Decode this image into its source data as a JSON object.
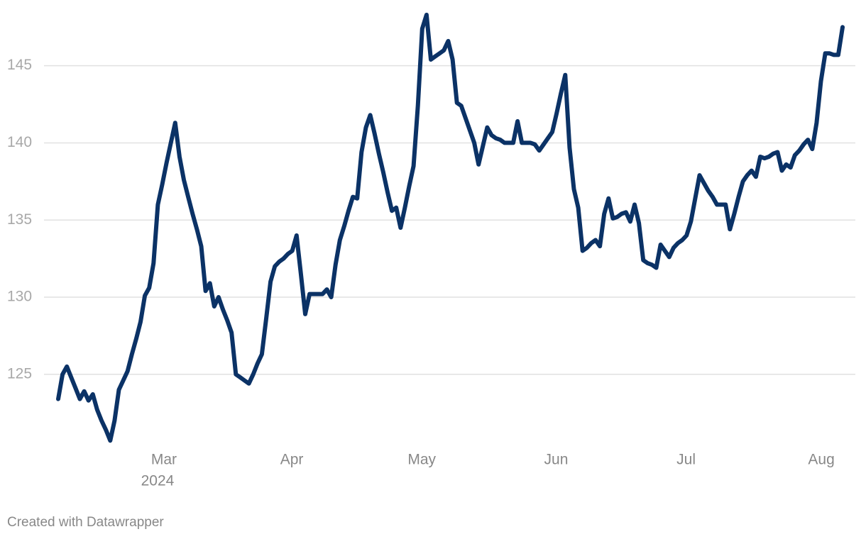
{
  "chart_data": {
    "type": "line",
    "series": [
      {
        "color": "#0b3266",
        "values": [
          123.4,
          125.0,
          125.5,
          124.8,
          124.1,
          123.4,
          123.9,
          123.3,
          123.7,
          122.7,
          122.0,
          121.4,
          120.7,
          122.0,
          124.0,
          124.6,
          125.2,
          126.3,
          127.3,
          128.4,
          130.1,
          130.6,
          132.2,
          136.0,
          137.3,
          138.7,
          140.0,
          141.3,
          139.1,
          137.6,
          136.5,
          135.4,
          134.4,
          133.3,
          130.4,
          130.9,
          129.4,
          130.0,
          129.2,
          128.5,
          127.7,
          125.0,
          124.8,
          124.6,
          124.4,
          125.0,
          125.7,
          126.3,
          128.6,
          131.0,
          132.0,
          132.3,
          132.5,
          132.8,
          133.0,
          134.0,
          131.5,
          128.9,
          130.2,
          130.2,
          130.2,
          130.2,
          130.5,
          130.0,
          132.1,
          133.7,
          134.6,
          135.6,
          136.5,
          136.4,
          139.4,
          141.0,
          141.8,
          140.6,
          139.3,
          138.1,
          136.8,
          135.6,
          135.8,
          134.5,
          135.8,
          137.2,
          138.5,
          142.4,
          147.4,
          148.3,
          145.4,
          145.6,
          145.8,
          146.0,
          146.6,
          145.4,
          142.6,
          142.4,
          141.6,
          140.8,
          140.0,
          138.6,
          139.8,
          141.0,
          140.5,
          140.3,
          140.2,
          140.0,
          140.0,
          140.0,
          141.4,
          140.0,
          140.0,
          140.0,
          139.9,
          139.5,
          139.9,
          140.3,
          140.7,
          141.9,
          143.2,
          144.4,
          139.7,
          137.0,
          135.8,
          133.0,
          133.2,
          133.5,
          133.7,
          133.3,
          135.4,
          136.4,
          135.1,
          135.2,
          135.4,
          135.5,
          134.9,
          136.0,
          134.8,
          132.4,
          132.2,
          132.1,
          131.9,
          133.4,
          133.0,
          132.6,
          133.2,
          133.5,
          133.7,
          134.0,
          134.9,
          136.4,
          137.9,
          137.4,
          136.9,
          136.5,
          136.0,
          136.0,
          136.0,
          134.4,
          135.4,
          136.5,
          137.5,
          137.9,
          138.2,
          137.8,
          139.1,
          139.0,
          139.1,
          139.3,
          139.4,
          138.2,
          138.6,
          138.4,
          139.2,
          139.5,
          139.9,
          140.2,
          139.6,
          141.3,
          144.0,
          145.8,
          145.8,
          145.7,
          145.7,
          147.5
        ]
      }
    ],
    "xlim": [
      0,
      181
    ],
    "xticks": [
      {
        "value": 24.4,
        "label": "Mar"
      },
      {
        "value": 53.9,
        "label": "Apr"
      },
      {
        "value": 83.9,
        "label": "May"
      },
      {
        "value": 114.9,
        "label": "Jun"
      },
      {
        "value": 144.9,
        "label": "Jul"
      },
      {
        "value": 176.1,
        "label": "Aug"
      }
    ],
    "year_label": "2024",
    "ylim": [
      120.3,
      148.8
    ],
    "yticks": [
      125,
      130,
      135,
      140,
      145
    ],
    "grid": true,
    "credit": "Created with Datawrapper"
  }
}
